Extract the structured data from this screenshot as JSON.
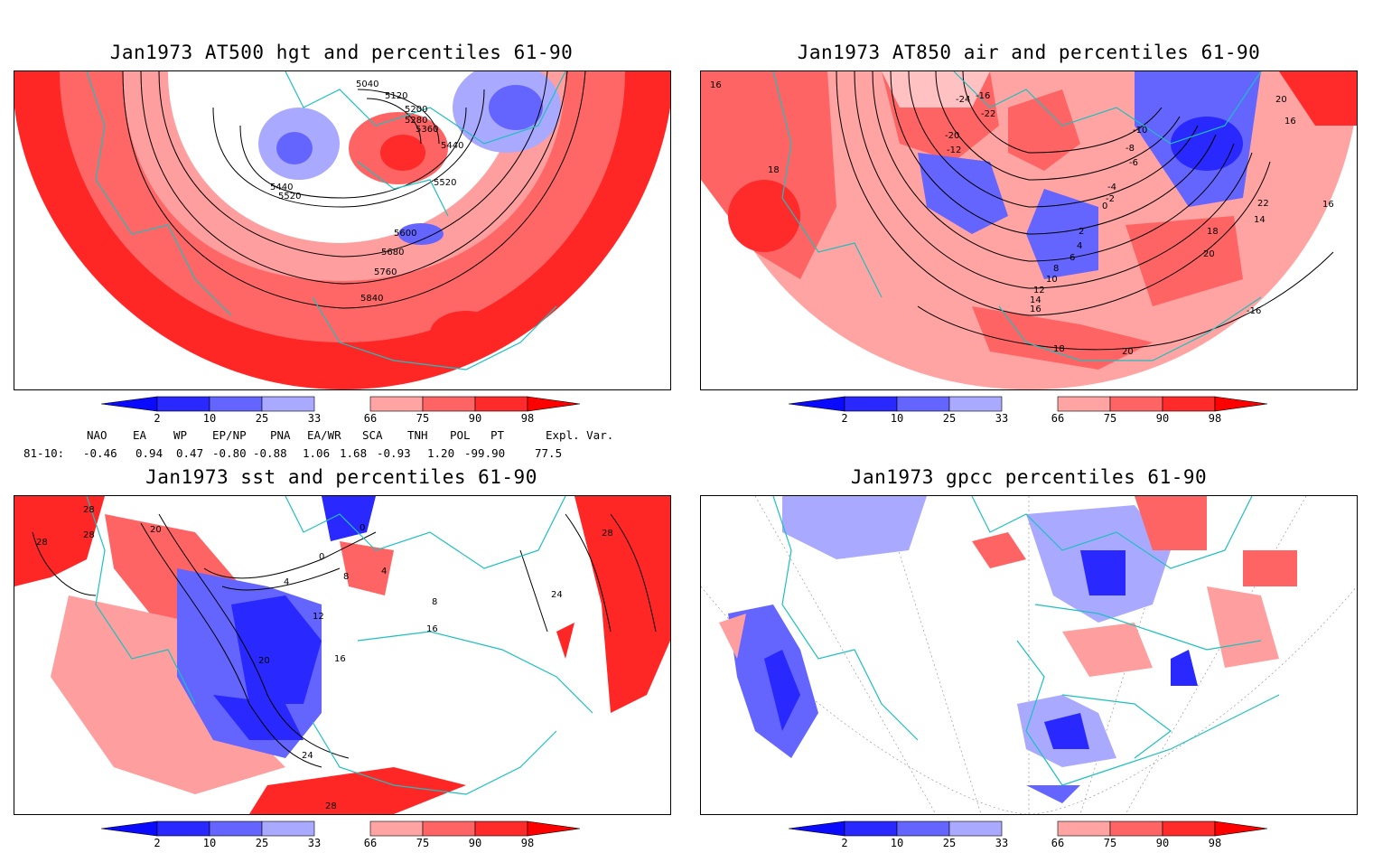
{
  "panels": [
    {
      "title": "Jan1973 AT500 hgt and percentiles 61-90",
      "contour_labels": [
        "5040",
        "5120",
        "5200",
        "5280",
        "5360",
        "5440",
        "5440",
        "5520",
        "5520",
        "5600",
        "5680",
        "5760",
        "5840"
      ]
    },
    {
      "title": "Jan1973 AT850 air and percentiles 61-90",
      "contour_labels": [
        "16",
        "18",
        "-24",
        "-16",
        "-22",
        "-20",
        "-12",
        "-10",
        "-8",
        "-6",
        "-4",
        "-2",
        "0",
        "2",
        "4",
        "6",
        "8",
        "10",
        "12",
        "14",
        "16",
        "18",
        "20",
        "22",
        "14",
        "16",
        "-16",
        "20",
        "18",
        "20",
        "16"
      ]
    },
    {
      "title": "Jan1973 sst and percentiles 61-90",
      "contour_labels": [
        "28",
        "28",
        "28",
        "20",
        "0",
        "4",
        "0",
        "8",
        "12",
        "16",
        "20",
        "24",
        "28",
        "4",
        "8",
        "16",
        "24",
        "28"
      ]
    },
    {
      "title": "Jan1973 gpcc percentiles 61-90",
      "contour_labels": []
    }
  ],
  "colorbar": {
    "labels": [
      "2",
      "10",
      "25",
      "33",
      "66",
      "75",
      "90",
      "98"
    ],
    "colors": {
      "below2": "#0a0aff",
      "c2_10": "#2828ff",
      "c10_25": "#6464ff",
      "c25_33": "#a9a9ff",
      "c66_75": "#ffa3a3",
      "c75_90": "#ff6464",
      "c90_98": "#ff2a2a",
      "above98": "#ff0000"
    }
  },
  "indices": {
    "headers": [
      "NAO",
      "EA",
      "WP",
      "EP/NP",
      "PNA",
      "EA/WR",
      "SCA",
      "TNH",
      "POL",
      "PT",
      "Expl. Var."
    ],
    "row_label": "81-10:",
    "values": [
      "-0.46",
      "0.94",
      "0.47",
      "-0.80",
      "-0.88",
      "1.06",
      "1.68",
      "-0.93",
      "1.20",
      "-99.90",
      "77.5"
    ]
  },
  "colors": {
    "coast": "#1fbfbf",
    "contour": "#000000",
    "red": "#ff2020",
    "lightred": "#ff9e9e",
    "blue": "#2525ff",
    "lightblue": "#a0a0ff"
  }
}
